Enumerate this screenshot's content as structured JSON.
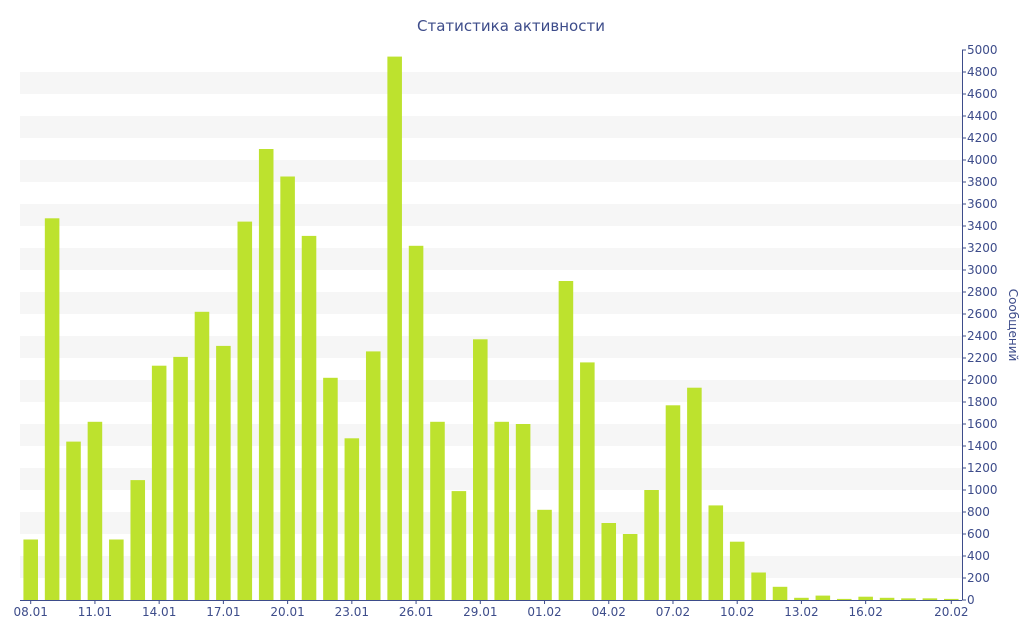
{
  "chart_data": {
    "type": "bar",
    "title": "Статистика активности",
    "xlabel": "",
    "ylabel": "Сообщений",
    "y_axis_side": "right",
    "ylim": [
      0,
      5000
    ],
    "ytick_step": 200,
    "grid": "alternating horizontal bands",
    "bar_color": "#bde22e",
    "band_color": "#f6f6f6",
    "text_color": "#3d4c8a",
    "categories": [
      "08.01",
      "09.01",
      "10.01",
      "11.01",
      "12.01",
      "13.01",
      "14.01",
      "15.01",
      "16.01",
      "17.01",
      "18.01",
      "19.01",
      "20.01",
      "21.01",
      "22.01",
      "23.01",
      "24.01",
      "25.01",
      "26.01",
      "27.01",
      "28.01",
      "29.01",
      "30.01",
      "31.01",
      "01.02",
      "02.02",
      "03.02",
      "04.02",
      "05.02",
      "06.02",
      "07.02",
      "08.02",
      "09.02",
      "10.02",
      "11.02",
      "12.02",
      "13.02",
      "14.02",
      "15.02",
      "16.02",
      "17.02",
      "18.02",
      "19.02",
      "20.02"
    ],
    "x_tick_labels": [
      "08.01",
      "11.01",
      "14.01",
      "17.01",
      "20.01",
      "23.01",
      "26.01",
      "29.01",
      "01.02",
      "04.02",
      "07.02",
      "10.02",
      "13.02",
      "16.02",
      "20.02"
    ],
    "values": [
      550,
      3470,
      1440,
      1620,
      550,
      1090,
      2130,
      2210,
      2620,
      2310,
      3440,
      4100,
      3850,
      3310,
      2020,
      1470,
      2260,
      4940,
      3220,
      1620,
      990,
      2370,
      1620,
      1600,
      820,
      2900,
      2160,
      700,
      600,
      1000,
      1770,
      1930,
      860,
      530,
      250,
      120,
      20,
      40,
      10,
      30,
      20,
      15,
      15,
      10
    ]
  }
}
